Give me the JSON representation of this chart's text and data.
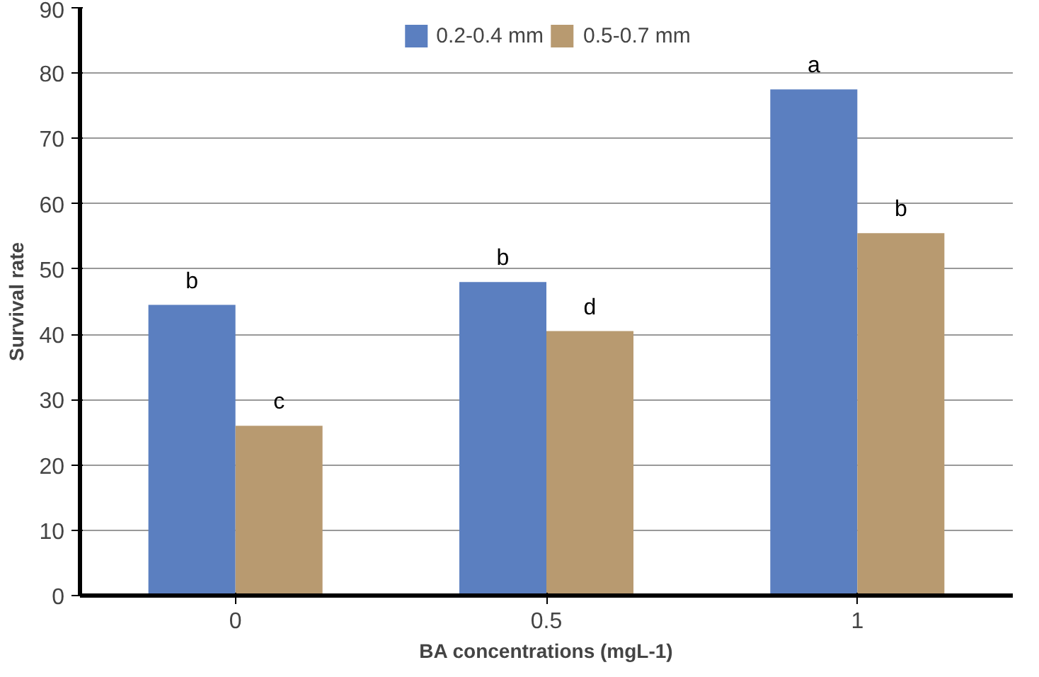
{
  "chart_data": {
    "type": "bar",
    "xlabel": "BA concentrations (mgL-1)",
    "ylabel": "Survival rate",
    "categories": [
      "0",
      "0.5",
      "1"
    ],
    "series": [
      {
        "name": "0.2-0.4 mm",
        "color": "#5b7fc0",
        "values": [
          44.5,
          48,
          77.5
        ],
        "value_labels": [
          "b",
          "b",
          "a"
        ]
      },
      {
        "name": "0.5-0.7 mm",
        "color": "#b89a70",
        "values": [
          26,
          40.5,
          55.5
        ],
        "value_labels": [
          "c",
          "d",
          "b"
        ]
      }
    ],
    "ylim": [
      0,
      90
    ],
    "yticks": [
      0,
      10,
      20,
      30,
      40,
      50,
      60,
      70,
      80,
      90
    ],
    "grid": "y",
    "legend": "top"
  }
}
